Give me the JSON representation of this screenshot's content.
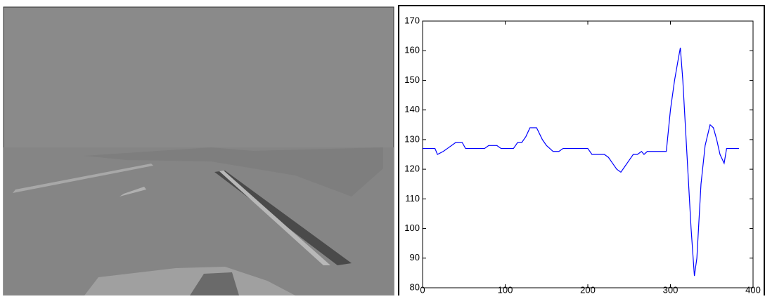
{
  "chart_data": {
    "type": "line",
    "x": [
      0,
      15,
      18,
      25,
      30,
      35,
      40,
      48,
      52,
      75,
      80,
      90,
      95,
      110,
      115,
      120,
      125,
      130,
      138,
      145,
      150,
      158,
      165,
      170,
      200,
      205,
      220,
      225,
      230,
      235,
      240,
      245,
      250,
      255,
      260,
      265,
      268,
      272,
      295,
      300,
      305,
      310,
      312,
      315,
      320,
      325,
      329,
      332,
      337,
      342,
      348,
      352,
      356,
      360,
      365,
      368,
      383
    ],
    "series": [
      {
        "color": "#0000ff",
        "values": [
          127,
          127,
          125,
          126,
          127,
          128,
          129,
          129,
          127,
          127,
          128,
          128,
          127,
          127,
          129,
          129,
          131,
          134,
          134,
          130,
          128,
          126,
          126,
          127,
          127,
          125,
          125,
          124,
          122,
          120,
          119,
          121,
          123,
          125,
          125,
          126,
          125,
          126,
          126,
          140,
          150,
          158,
          161,
          150,
          125,
          100,
          84,
          90,
          115,
          128,
          135,
          134,
          130,
          125,
          122,
          127,
          127
        ]
      }
    ],
    "xlim": [
      0,
      400
    ],
    "xticks": [
      0,
      100,
      200,
      300,
      400
    ],
    "ylim": [
      80,
      170
    ],
    "yticks": [
      80,
      90,
      100,
      110,
      120,
      130,
      140,
      150,
      160,
      170
    ]
  }
}
